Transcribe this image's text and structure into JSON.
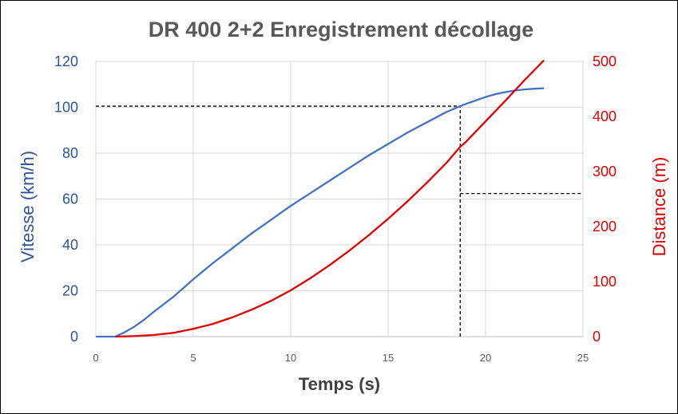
{
  "chart_data": {
    "type": "line",
    "title": "DR 400 2+2 Enregistrement décollage",
    "xlabel": "Temps (s)",
    "ylabel": "Vitesse (km/h)",
    "y2label": "Distance (m)",
    "xlim": [
      0,
      25
    ],
    "ylim": [
      0,
      120
    ],
    "y2lim": [
      0,
      500
    ],
    "x_ticks": [
      "0",
      "5",
      "10",
      "15",
      "20",
      "25"
    ],
    "y_ticks": [
      "0",
      "20",
      "40",
      "60",
      "80",
      "100",
      "120"
    ],
    "y2_ticks": [
      "0",
      "100",
      "200",
      "300",
      "400",
      "500"
    ],
    "grid": true,
    "series": [
      {
        "axis": "left",
        "color": "#4472C4",
        "x": [
          0,
          1,
          1.5,
          2,
          2.5,
          3,
          4,
          5,
          6,
          7,
          8,
          9,
          10,
          11,
          12,
          13,
          14,
          15,
          16,
          17,
          18,
          18.7,
          19,
          19.5,
          20,
          20.5,
          21,
          21.5,
          22,
          22.5,
          23
        ],
        "y": [
          0,
          0,
          2,
          4.5,
          7.5,
          11,
          17.5,
          25,
          32,
          38.5,
          45,
          51,
          57,
          62.5,
          68,
          73.5,
          79,
          84,
          89,
          93.5,
          98,
          100.5,
          101.5,
          103,
          104.5,
          105.7,
          106.6,
          107.3,
          107.8,
          108.1,
          108.3
        ]
      },
      {
        "axis": "right",
        "color": "#E00000",
        "x": [
          1,
          2,
          3,
          4,
          5,
          6,
          7,
          8,
          9,
          10,
          11,
          12,
          13,
          14,
          15,
          16,
          17,
          18,
          18.7,
          19,
          20,
          21,
          22,
          23
        ],
        "y": [
          0,
          1,
          3,
          7,
          14,
          23,
          35,
          49,
          65,
          84,
          106,
          130,
          156,
          184,
          214,
          246,
          280,
          316,
          345,
          354,
          391,
          428,
          466,
          502
        ]
      }
    ],
    "annotations": [
      {
        "type": "hline",
        "axis": "left",
        "y": 100.5,
        "x_from": 0,
        "x_to": 18.7,
        "color": "#000000",
        "style": "dashed"
      },
      {
        "type": "vline",
        "x": 18.7,
        "y_from": 0,
        "y_to": 100.5,
        "axis": "left",
        "color": "#000000",
        "style": "dashed"
      },
      {
        "type": "hline",
        "axis": "right",
        "y": 260,
        "x_from": 18.7,
        "x_to": 25,
        "color": "#000000",
        "style": "dashed"
      }
    ]
  }
}
